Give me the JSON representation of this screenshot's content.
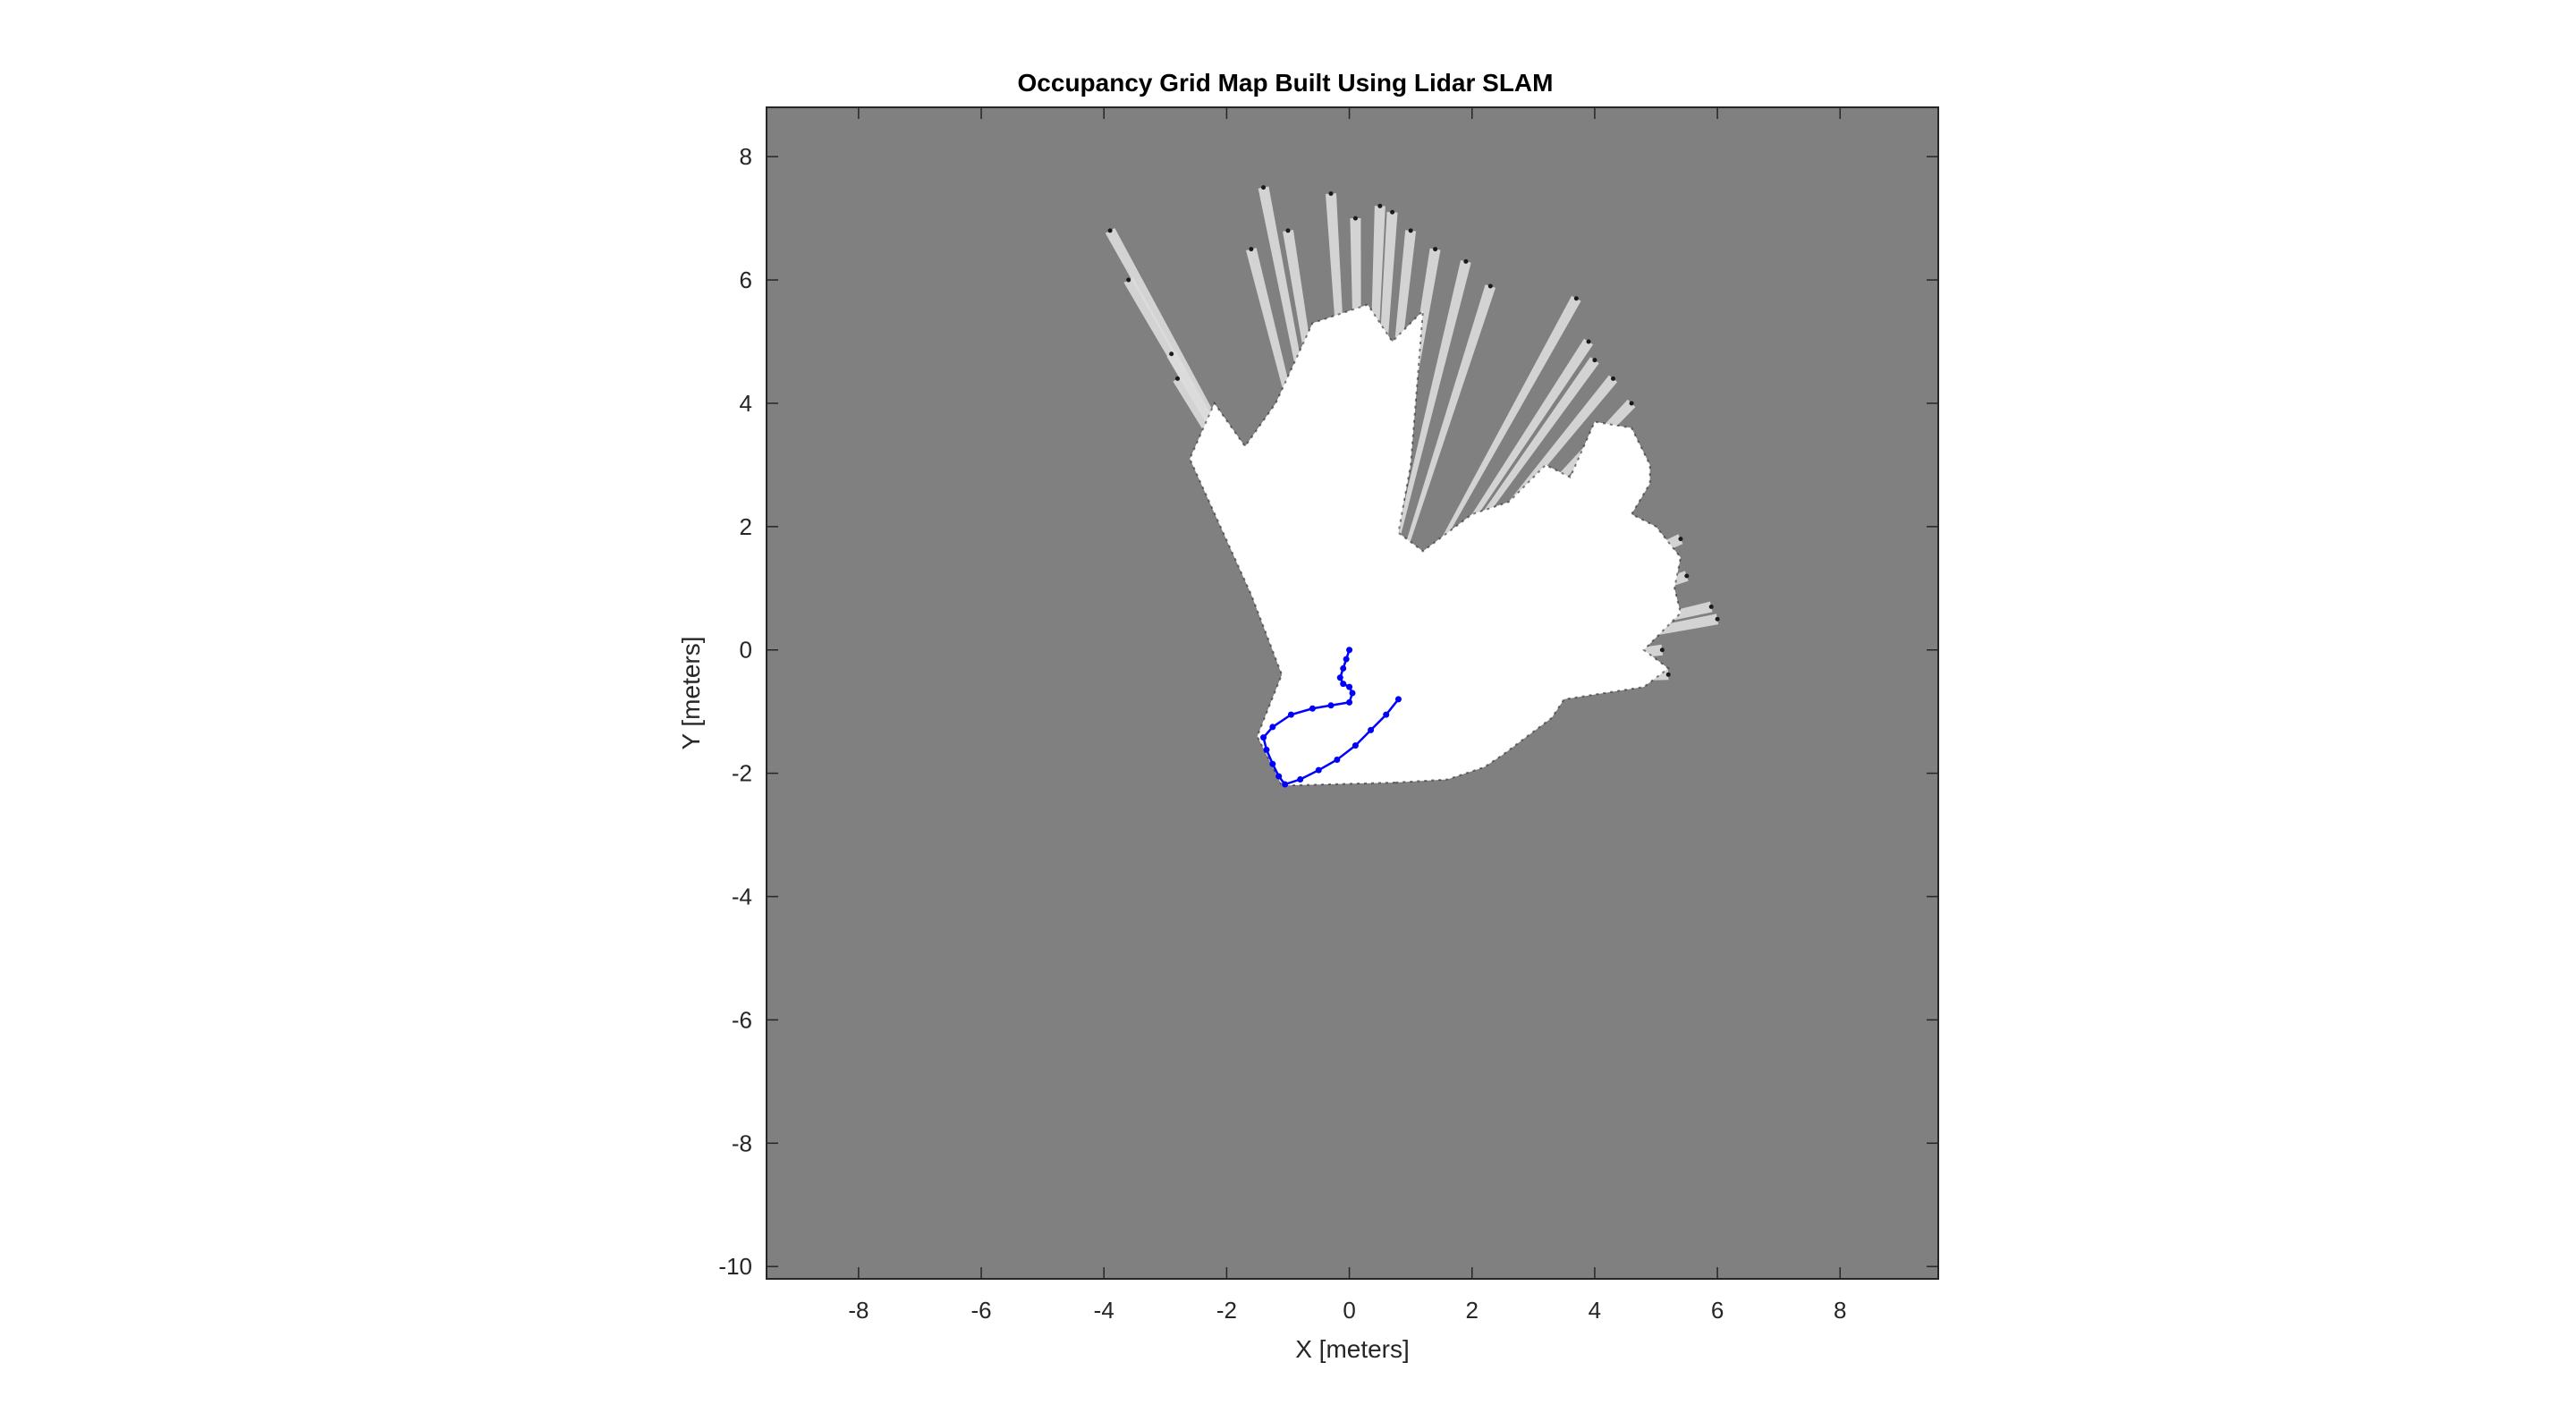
{
  "chart_data": {
    "type": "scatter",
    "title": "Occupancy Grid Map Built Using Lidar SLAM",
    "xlabel": "X [meters]",
    "ylabel": "Y [meters]",
    "xlim": [
      -9.5,
      9.6
    ],
    "ylim": [
      -10.2,
      8.8
    ],
    "xticks": [
      -8,
      -6,
      -4,
      -2,
      0,
      2,
      4,
      6,
      8
    ],
    "yticks": [
      -10,
      -8,
      -6,
      -4,
      -2,
      0,
      2,
      4,
      6,
      8
    ],
    "grid": false,
    "legend": "none",
    "colors": {
      "unknown": "#808080",
      "free": "#ffffff",
      "occupied": "#1a1a1a",
      "trajectory": "#0000ff",
      "axis": "#262626"
    },
    "series": [
      {
        "x": [
          0.0,
          -0.05,
          -0.1,
          -0.15,
          -0.1,
          0.0,
          0.05,
          0.0,
          -0.3,
          -0.6,
          -0.95,
          -1.25,
          -1.4,
          -1.35,
          -1.25,
          -1.15,
          -1.05,
          -0.8,
          -0.5,
          -0.2,
          0.1,
          0.35,
          0.6,
          0.8
        ],
        "y": [
          0.0,
          -0.15,
          -0.3,
          -0.45,
          -0.55,
          -0.6,
          -0.7,
          -0.85,
          -0.9,
          -0.95,
          -1.05,
          -1.25,
          -1.42,
          -1.62,
          -1.85,
          -2.05,
          -2.18,
          -2.1,
          -1.95,
          -1.78,
          -1.55,
          -1.3,
          -1.05,
          -0.8
        ]
      }
    ],
    "free_region": {
      "hull": [
        [
          0.75,
          -2.15
        ],
        [
          -1.1,
          -2.2
        ],
        [
          -1.5,
          -1.4
        ],
        [
          -1.1,
          -0.4
        ],
        [
          -1.6,
          0.9
        ],
        [
          -2.6,
          3.1
        ],
        [
          -2.2,
          4.0
        ],
        [
          -1.7,
          3.3
        ],
        [
          -1.2,
          4.0
        ],
        [
          -0.6,
          5.3
        ],
        [
          0.3,
          5.6
        ],
        [
          0.7,
          5.0
        ],
        [
          1.2,
          5.5
        ],
        [
          1.0,
          3.0
        ],
        [
          0.8,
          1.9
        ],
        [
          1.2,
          1.6
        ],
        [
          2.0,
          2.2
        ],
        [
          2.6,
          2.4
        ],
        [
          3.2,
          3.0
        ],
        [
          3.6,
          2.8
        ],
        [
          4.0,
          3.7
        ],
        [
          4.6,
          3.6
        ],
        [
          4.9,
          3.0
        ],
        [
          4.9,
          2.7
        ],
        [
          4.6,
          2.2
        ],
        [
          5.0,
          2.0
        ],
        [
          5.4,
          1.5
        ],
        [
          5.3,
          1.0
        ],
        [
          5.4,
          0.6
        ],
        [
          5.1,
          0.3
        ],
        [
          4.8,
          0.0
        ],
        [
          5.2,
          -0.3
        ],
        [
          4.8,
          -0.6
        ],
        [
          3.5,
          -0.8
        ],
        [
          3.3,
          -1.1
        ],
        [
          2.5,
          -1.7
        ],
        [
          2.2,
          -1.9
        ],
        [
          1.6,
          -2.1
        ]
      ],
      "rays": [
        [
          -3.9,
          6.8
        ],
        [
          -3.6,
          6.0
        ],
        [
          -2.9,
          4.8
        ],
        [
          -2.8,
          4.4
        ],
        [
          -1.4,
          7.5
        ],
        [
          -1.6,
          6.5
        ],
        [
          -1.0,
          6.8
        ],
        [
          -0.3,
          7.4
        ],
        [
          0.1,
          7.0
        ],
        [
          0.5,
          7.2
        ],
        [
          0.7,
          7.1
        ],
        [
          1.0,
          6.8
        ],
        [
          1.4,
          6.5
        ],
        [
          1.9,
          6.3
        ],
        [
          2.3,
          5.9
        ],
        [
          3.7,
          5.7
        ],
        [
          3.9,
          5.0
        ],
        [
          4.0,
          4.7
        ],
        [
          4.3,
          4.4
        ],
        [
          4.6,
          4.0
        ],
        [
          5.4,
          1.8
        ],
        [
          5.5,
          1.2
        ],
        [
          5.9,
          0.7
        ],
        [
          6.0,
          0.5
        ],
        [
          5.1,
          0.0
        ],
        [
          5.2,
          -0.4
        ]
      ]
    }
  }
}
